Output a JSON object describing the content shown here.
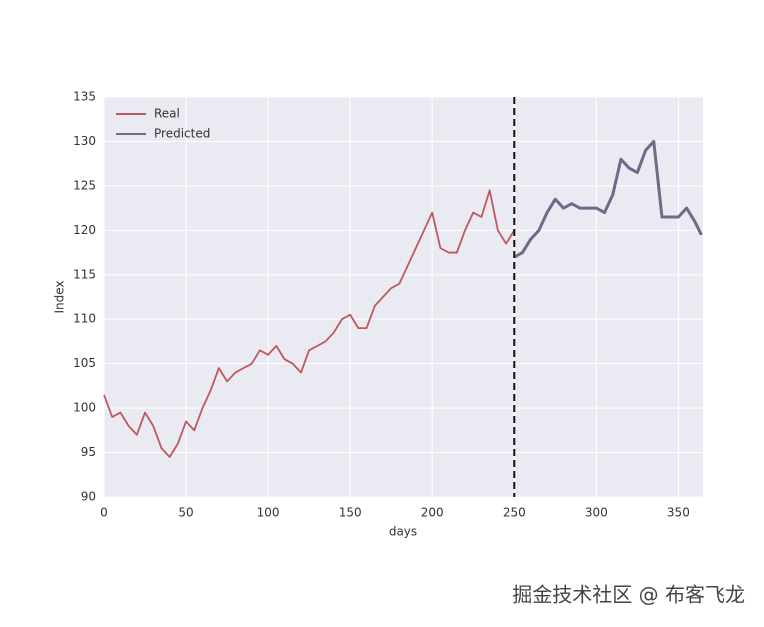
{
  "chart_data": {
    "type": "line",
    "xlabel": "days",
    "ylabel": "Index",
    "x": [
      0,
      5,
      10,
      15,
      20,
      25,
      30,
      35,
      40,
      45,
      50,
      55,
      60,
      65,
      70,
      75,
      80,
      85,
      90,
      95,
      100,
      105,
      110,
      115,
      120,
      125,
      130,
      135,
      140,
      145,
      150,
      155,
      160,
      165,
      170,
      175,
      180,
      185,
      190,
      195,
      200,
      205,
      210,
      215,
      220,
      225,
      230,
      235,
      240,
      245,
      250,
      255,
      260,
      265,
      270,
      275,
      280,
      285,
      290,
      295,
      300,
      305,
      310,
      315,
      320,
      325,
      330,
      335,
      340,
      345,
      350,
      355,
      360,
      364
    ],
    "series": [
      {
        "name": "Real",
        "color": "#c0585d",
        "values": [
          101.5,
          99,
          99.5,
          98,
          97,
          99.5,
          98,
          95.5,
          94.5,
          96,
          98.5,
          97.5,
          100,
          102,
          104.5,
          103,
          104,
          104.5,
          105,
          106.5,
          106,
          107,
          105.5,
          105,
          104,
          106.5,
          107,
          107.5,
          108.5,
          110,
          110.5,
          109,
          109,
          111.5,
          112.5,
          113.5,
          114,
          116,
          118,
          120,
          122,
          118,
          117.5,
          117.5,
          120,
          122,
          121.5,
          124.5,
          120,
          118.5,
          120,
          null,
          null,
          null,
          null,
          null,
          null,
          null,
          null,
          null,
          null,
          null,
          null,
          null,
          null,
          null,
          null,
          null,
          null,
          null,
          null,
          null,
          null,
          null
        ]
      },
      {
        "name": "Predicted",
        "color": "#6e6a88",
        "values": [
          null,
          null,
          null,
          null,
          null,
          null,
          null,
          null,
          null,
          null,
          null,
          null,
          null,
          null,
          null,
          null,
          null,
          null,
          null,
          null,
          null,
          null,
          null,
          null,
          null,
          null,
          null,
          null,
          null,
          null,
          null,
          null,
          null,
          null,
          null,
          null,
          null,
          null,
          null,
          null,
          null,
          null,
          null,
          null,
          null,
          null,
          null,
          null,
          null,
          null,
          117,
          117.5,
          119,
          120,
          122,
          123.5,
          122.5,
          123,
          122.5,
          122.5,
          122.5,
          122,
          124,
          128,
          127,
          126.5,
          129,
          130,
          121.5,
          121.5,
          121.5,
          122.5,
          121,
          119.5
        ]
      }
    ],
    "vline": 250,
    "xlim": [
      0,
      365
    ],
    "ylim": [
      90,
      135
    ],
    "xticks": [
      0,
      50,
      100,
      150,
      200,
      250,
      300,
      350
    ],
    "yticks": [
      90,
      95,
      100,
      105,
      110,
      115,
      120,
      125,
      130,
      135
    ],
    "grid": true,
    "legend": "upper left",
    "watermark": "掘金技术社区 @ 布客飞龙"
  }
}
